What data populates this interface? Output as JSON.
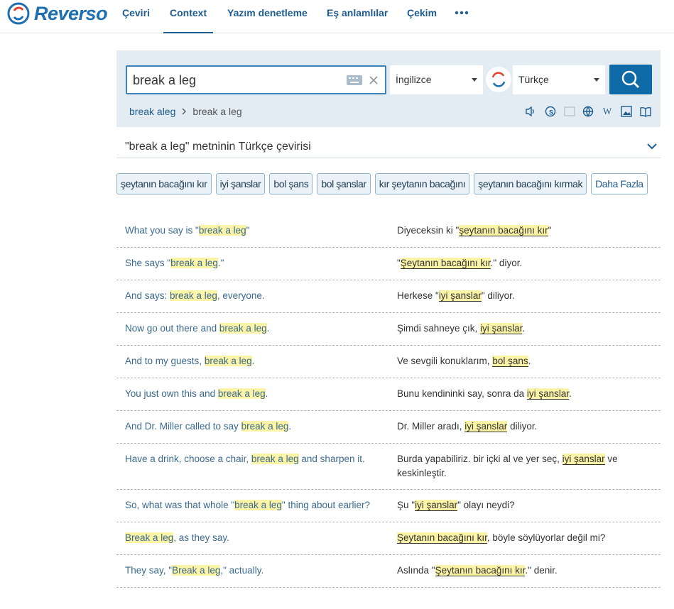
{
  "nav": {
    "logo": "Reverso",
    "items": [
      "Çeviri",
      "Context",
      "Yazım denetleme",
      "Eş anlamlılar",
      "Çekim"
    ]
  },
  "search": {
    "query": "break a leg",
    "source_language": "İngilizce",
    "target_language": "Türkçe",
    "breadcrumbs": [
      "break aleg",
      "break a leg"
    ]
  },
  "heading": "\"break a leg\" metninin Türkçe çevirisi",
  "translations": [
    "şeytanın bacağını kır",
    "iyi şanslar",
    "bol şans",
    "bol şanslar",
    "kır şeytanın bacağını",
    "şeytanın bacağını kırmak"
  ],
  "more": "Daha Fazla",
  "examples": [
    {
      "source": [
        "What you say is \"",
        {
          "text": "break a leg",
          "highlight": true
        },
        "\""
      ],
      "target": [
        "Diyeceksin ki \"",
        {
          "text": "şeytanın bacağını kır",
          "highlight": true
        },
        "\""
      ]
    },
    {
      "source": [
        "She says \"",
        {
          "text": "break a leg",
          "highlight": true
        },
        ".\""
      ],
      "target": [
        "\"",
        {
          "text": "Şeytanın bacağını kır",
          "highlight": true
        },
        ".\" diyor."
      ]
    },
    {
      "source": [
        "And says: ",
        {
          "text": "break a leg",
          "highlight": true
        },
        ", everyone."
      ],
      "target": [
        "Herkese \"",
        {
          "text": "iyi şanslar",
          "highlight": true
        },
        "\" diliyor."
      ]
    },
    {
      "source": [
        "Now go out there and ",
        {
          "text": "break a leg",
          "highlight": true
        },
        "."
      ],
      "target": [
        "Şimdi sahneye çık, ",
        {
          "text": "iyi şanslar",
          "highlight": true
        },
        "."
      ]
    },
    {
      "source": [
        "And to my guests, ",
        {
          "text": "break a leg",
          "highlight": true
        },
        "."
      ],
      "target": [
        "Ve sevgili konuklarım, ",
        {
          "text": "bol şans",
          "highlight": true
        },
        "."
      ]
    },
    {
      "source": [
        "You just own this and ",
        {
          "text": "break a leg",
          "highlight": true
        },
        "."
      ],
      "target": [
        "Bunu kendininki say, sonra da ",
        {
          "text": "iyi şanslar",
          "highlight": true
        },
        "."
      ]
    },
    {
      "source": [
        "And Dr. Miller called to say ",
        {
          "text": "break a leg",
          "highlight": true
        },
        "."
      ],
      "target": [
        "Dr. Miller aradı, ",
        {
          "text": "iyi şanslar",
          "highlight": true
        },
        " diliyor."
      ]
    },
    {
      "source": [
        "Have a drink, choose a chair, ",
        {
          "text": "break a leg",
          "highlight": true
        },
        " and sharpen it."
      ],
      "target": [
        "Burda yapabiliriz. bir içki al ve yer seç, ",
        {
          "text": "iyi şanslar",
          "highlight": true
        },
        " ve keskinleştir."
      ]
    },
    {
      "source": [
        "So, what was that whole \"",
        {
          "text": "break a leg",
          "highlight": true
        },
        "\" thing about earlier?"
      ],
      "target": [
        "Şu \"",
        {
          "text": "iyi şanslar",
          "highlight": true
        },
        "\" olayı neydi?"
      ]
    },
    {
      "source": [
        {
          "text": "Break a leg",
          "highlight": true
        },
        ", as they say."
      ],
      "target": [
        {
          "text": "Şeytanın bacağını kır",
          "highlight": true
        },
        ", böyle söylüyorlar değil mi?"
      ]
    },
    {
      "source": [
        "They say, \"",
        {
          "text": "Break a leg",
          "highlight": true
        },
        ",\" actually."
      ],
      "target": [
        "Aslında \"",
        {
          "text": "Şeytanın bacağını kır",
          "highlight": true
        },
        ".\" denir."
      ]
    }
  ]
}
